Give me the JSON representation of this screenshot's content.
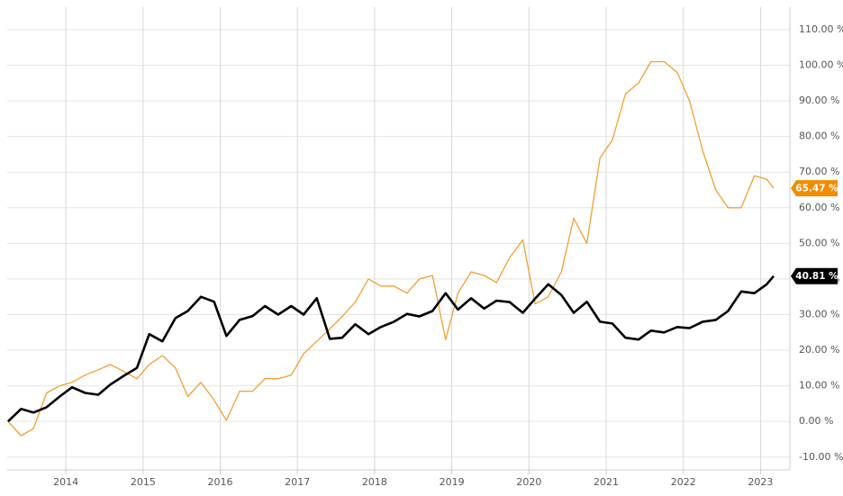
{
  "chart_data": {
    "type": "line",
    "x": [
      2013.25,
      2013.42,
      2013.58,
      2013.75,
      2013.92,
      2014.08,
      2014.25,
      2014.42,
      2014.58,
      2014.75,
      2014.92,
      2015.08,
      2015.25,
      2015.42,
      2015.58,
      2015.75,
      2015.92,
      2016.08,
      2016.25,
      2016.42,
      2016.58,
      2016.75,
      2016.92,
      2017.08,
      2017.25,
      2017.42,
      2017.58,
      2017.75,
      2017.92,
      2018.08,
      2018.25,
      2018.42,
      2018.58,
      2018.75,
      2018.92,
      2019.08,
      2019.25,
      2019.42,
      2019.58,
      2019.75,
      2019.92,
      2020.08,
      2020.25,
      2020.42,
      2020.58,
      2020.75,
      2020.92,
      2021.08,
      2021.25,
      2021.42,
      2021.58,
      2021.75,
      2021.92,
      2022.08,
      2022.25,
      2022.42,
      2022.58,
      2022.75,
      2022.92,
      2023.08,
      2023.17
    ],
    "series": [
      {
        "color": "#f0a030",
        "width": 1.3,
        "values": [
          0,
          -4,
          -2,
          8,
          10,
          11,
          13,
          14.5,
          16,
          14,
          12,
          16,
          18.5,
          15,
          7,
          11,
          6,
          0.3,
          8.5,
          8.5,
          12,
          12,
          13,
          19,
          22.5,
          26,
          29.5,
          33.5,
          40,
          38,
          38,
          36,
          40,
          41,
          23,
          36,
          42,
          41,
          39,
          46,
          51,
          33,
          35,
          42,
          57,
          50,
          74,
          79,
          92,
          95,
          101,
          101,
          98,
          90,
          76,
          65,
          60,
          60,
          69,
          68,
          65.47
        ],
        "value_labels": [
          null,
          null,
          null,
          null,
          null,
          null,
          null,
          null,
          null,
          null,
          null,
          null,
          null,
          null,
          null,
          null,
          null,
          null,
          null,
          null,
          null,
          null,
          null,
          null,
          null,
          null,
          null,
          null,
          null,
          null,
          null,
          null,
          null,
          null,
          null,
          null,
          null,
          null,
          null,
          null,
          null,
          null,
          null,
          null,
          null,
          null,
          null,
          null,
          null,
          null,
          null,
          null,
          null,
          null,
          null,
          null,
          null,
          null,
          null,
          null,
          "65.47 %"
        ],
        "badge_color": "#f08c00"
      },
      {
        "color": "#000000",
        "width": 2.6,
        "values": [
          0,
          3.5,
          2.5,
          4,
          7,
          9.6,
          8,
          7.5,
          10.4,
          12.8,
          15,
          24.5,
          22.5,
          29,
          31,
          35,
          33.6,
          24,
          28.5,
          29.6,
          32.4,
          30,
          32.4,
          30,
          34.6,
          23.2,
          23.5,
          27.3,
          24.5,
          26.5,
          28,
          30.2,
          29.5,
          31,
          36,
          31.4,
          34.6,
          31.7,
          33.9,
          33.5,
          30.5,
          34.5,
          38.5,
          35.5,
          30.5,
          33.6,
          28,
          27.5,
          23.5,
          23,
          25.5,
          25,
          26.5,
          26.2,
          28,
          28.5,
          31,
          36.5,
          36,
          38.5,
          40.81
        ],
        "value_labels": [
          null,
          null,
          null,
          null,
          null,
          null,
          null,
          null,
          null,
          null,
          null,
          null,
          null,
          null,
          null,
          null,
          null,
          null,
          null,
          null,
          null,
          null,
          null,
          null,
          null,
          null,
          null,
          null,
          null,
          null,
          null,
          null,
          null,
          null,
          null,
          null,
          null,
          null,
          null,
          null,
          null,
          null,
          null,
          null,
          null,
          null,
          null,
          null,
          null,
          null,
          null,
          null,
          null,
          null,
          null,
          null,
          null,
          null,
          null,
          null,
          "40.81 %"
        ],
        "badge_color": "#000000"
      }
    ],
    "xlim": [
      2013.24,
      2023.38
    ],
    "xticks": [
      2014,
      2015,
      2016,
      2017,
      2018,
      2019,
      2020,
      2021,
      2022,
      2023
    ],
    "ylim": [
      -13.6,
      116.3
    ],
    "yticks": [
      {
        "value": 110,
        "label": "110.00 %"
      },
      {
        "value": 100,
        "label": "100.00 %"
      },
      {
        "value": 90,
        "label": "90.00 %"
      },
      {
        "value": 80,
        "label": "80.00 %"
      },
      {
        "value": 70,
        "label": "70.00 %"
      },
      {
        "value": 60,
        "label": "60.00 %"
      },
      {
        "value": 50,
        "label": "50.00 %"
      },
      {
        "value": 40,
        "label": "40.00 %"
      },
      {
        "value": 30,
        "label": "30.00 %"
      },
      {
        "value": 20,
        "label": "20.00 %"
      },
      {
        "value": 10,
        "label": "10.00 %"
      },
      {
        "value": 0,
        "label": "0.00 %"
      },
      {
        "value": -10,
        "label": "-10.00 %"
      }
    ],
    "grid": true
  }
}
